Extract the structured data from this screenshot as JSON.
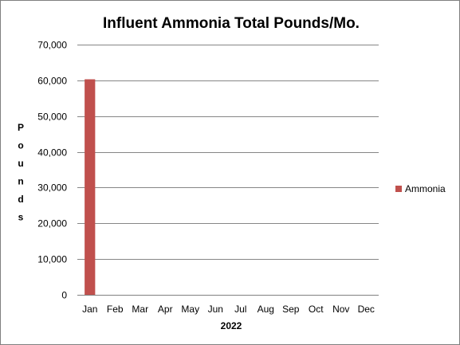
{
  "chart_data": {
    "type": "bar",
    "title": "Influent Ammonia Total Pounds/Mo.",
    "xlabel": "2022",
    "ylabel": "Pounds",
    "categories": [
      "Jan",
      "Feb",
      "Mar",
      "Apr",
      "May",
      "Jun",
      "Jul",
      "Aug",
      "Sep",
      "Oct",
      "Nov",
      "Dec"
    ],
    "series": [
      {
        "name": "Ammonia",
        "color": "#c0504d",
        "values": [
          60300,
          null,
          null,
          null,
          null,
          null,
          null,
          null,
          null,
          null,
          null,
          null
        ]
      }
    ],
    "ylim": [
      0,
      70000
    ],
    "yticks": [
      0,
      10000,
      20000,
      30000,
      40000,
      50000,
      60000,
      70000
    ],
    "ytick_labels": [
      "0",
      "10,000",
      "20,000",
      "30,000",
      "40,000",
      "50,000",
      "60,000",
      "70,000"
    ],
    "grid": true,
    "legend_position": "right"
  }
}
